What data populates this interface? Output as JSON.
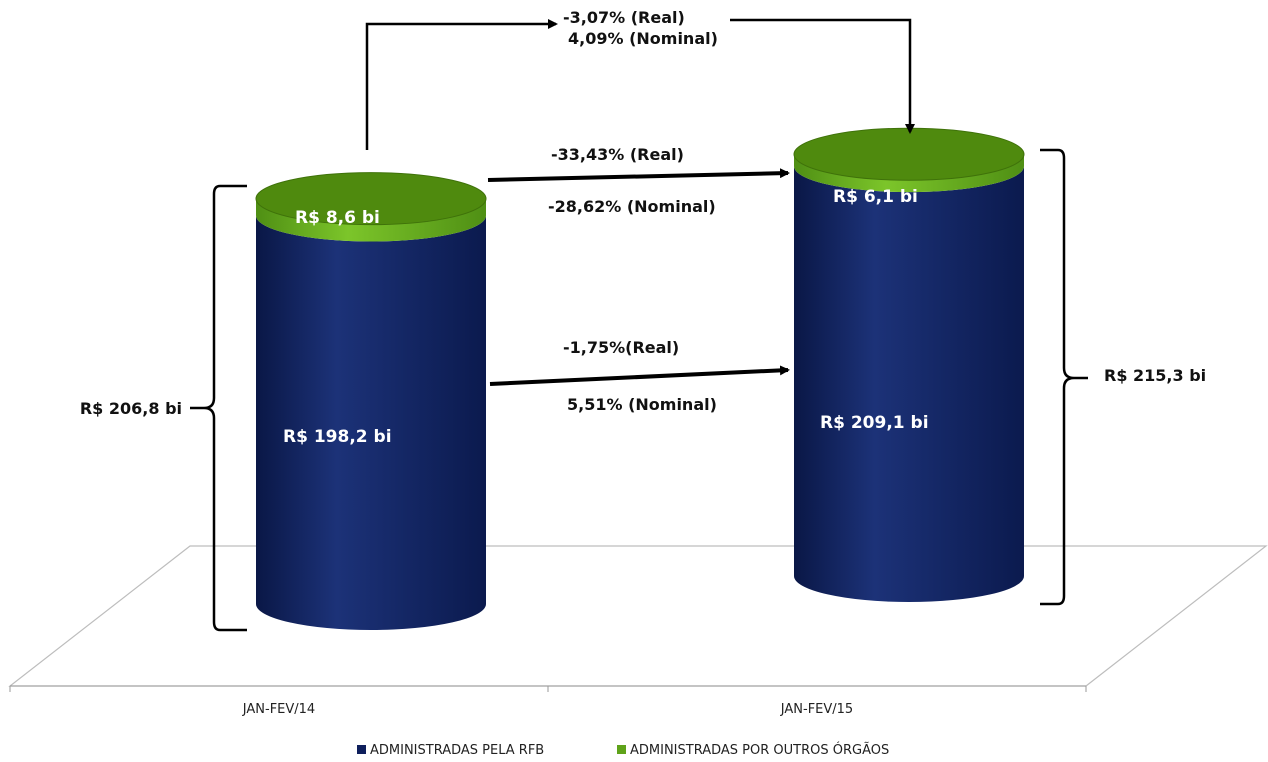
{
  "chart_data": {
    "type": "bar",
    "categories": [
      "JAN-FEV/14",
      "JAN-FEV/15"
    ],
    "series": [
      {
        "name": "ADMINISTRADAS PELA RFB",
        "values": [
          198.2,
          209.1
        ],
        "color": "#0e1f5c"
      },
      {
        "name": "ADMINISTRADAS POR OUTROS ÓRGÃOS",
        "values": [
          8.6,
          6.1
        ],
        "color": "#5fa31a"
      }
    ],
    "value_labels": {
      "rfb": [
        "R$ 198,2  bi",
        "R$ 209,1  bi"
      ],
      "outros": [
        "R$ 8,6  bi",
        "R$ 6,1  bi"
      ]
    },
    "totals": {
      "values": [
        206.8,
        215.3
      ],
      "labels": [
        "R$ 206,8  bi",
        "R$ 215,3  bi"
      ]
    },
    "annotations": {
      "total_change": [
        "-3,07% (Real)",
        "4,09% (Nominal)"
      ],
      "outros_change": [
        "-33,43% (Real)",
        "-28,62% (Nominal)"
      ],
      "rfb_change": [
        "-1,75%(Real)",
        "5,51% (Nominal)"
      ]
    },
    "legend_position": "bottom",
    "grid": false
  }
}
